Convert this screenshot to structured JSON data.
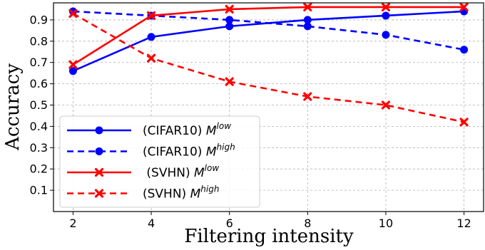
{
  "chart_data": {
    "type": "line",
    "xlabel": "Filtering intensity",
    "ylabel": "Accuracy",
    "x": [
      2,
      4,
      6,
      8,
      10,
      12
    ],
    "xlim": [
      1.5,
      12.5
    ],
    "ylim": [
      0.0,
      0.98
    ],
    "xticks": [
      "2",
      "4",
      "6",
      "8",
      "10",
      "12"
    ],
    "yticks": [
      "0.1",
      "0.2",
      "0.3",
      "0.4",
      "0.5",
      "0.6",
      "0.7",
      "0.8",
      "0.9"
    ],
    "grid": true,
    "legend_position": "lower-left",
    "series": [
      {
        "name": "(CIFAR10) M",
        "sup": "low",
        "color": "#0000ff",
        "dash": "solid",
        "marker": "circle",
        "values": [
          0.66,
          0.82,
          0.87,
          0.9,
          0.92,
          0.94
        ]
      },
      {
        "name": "(CIFAR10) M",
        "sup": "high",
        "color": "#0000ff",
        "dash": "dashed",
        "marker": "circle",
        "values": [
          0.94,
          0.92,
          0.9,
          0.87,
          0.83,
          0.76
        ]
      },
      {
        "name": " (SVHN) M",
        "sup": "low",
        "color": "#ff0000",
        "dash": "solid",
        "marker": "x",
        "values": [
          0.69,
          0.92,
          0.95,
          0.96,
          0.96,
          0.96
        ]
      },
      {
        "name": "(SVHN) M",
        "sup": "high",
        "color": "#ff0000",
        "dash": "dashed",
        "marker": "x",
        "values": [
          0.93,
          0.72,
          0.61,
          0.54,
          0.5,
          0.42
        ]
      }
    ]
  }
}
